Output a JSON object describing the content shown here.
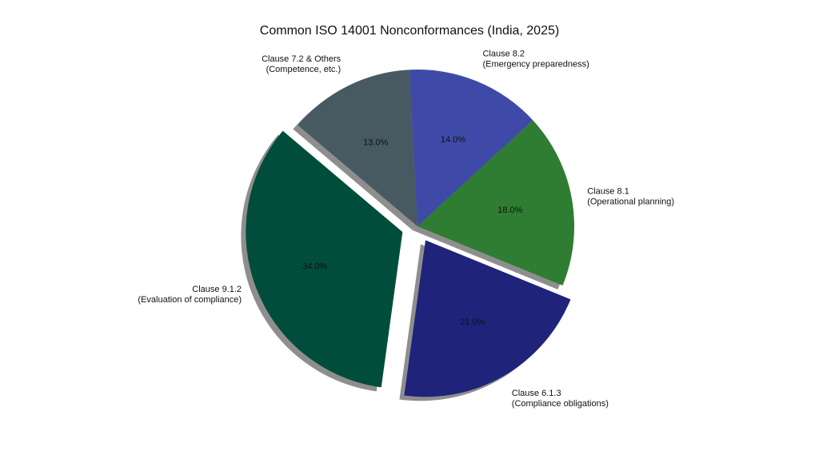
{
  "chart_data": {
    "type": "pie",
    "title": "Common ISO 14001 Nonconformances (India, 2025)",
    "slices": [
      {
        "label": [
          "Clause 8.2",
          "(Emergency preparedness)"
        ],
        "value": 14.0,
        "pct_label": "14.0%",
        "color": "#3f4aa8",
        "explode": false
      },
      {
        "label": [
          "Clause 8.1",
          "(Operational planning)"
        ],
        "value": 18.0,
        "pct_label": "18.0%",
        "color": "#2e7d32",
        "explode": false
      },
      {
        "label": [
          "Clause 6.1.3",
          "(Compliance obligations)"
        ],
        "value": 21.0,
        "pct_label": "21.0%",
        "color": "#1f237a",
        "explode": true
      },
      {
        "label": [
          "Clause 9.1.2",
          "(Evaluation of compliance)"
        ],
        "value": 34.0,
        "pct_label": "34.0%",
        "color": "#004d3b",
        "explode": true
      },
      {
        "label": [
          "Clause 7.2 & Others",
          "(Competence, etc.)"
        ],
        "value": 13.0,
        "pct_label": "13.0%",
        "color": "#475a62",
        "explode": false
      }
    ],
    "start_angle_deg": 93,
    "direction": "clockwise",
    "shadow": true,
    "legend": "none"
  }
}
